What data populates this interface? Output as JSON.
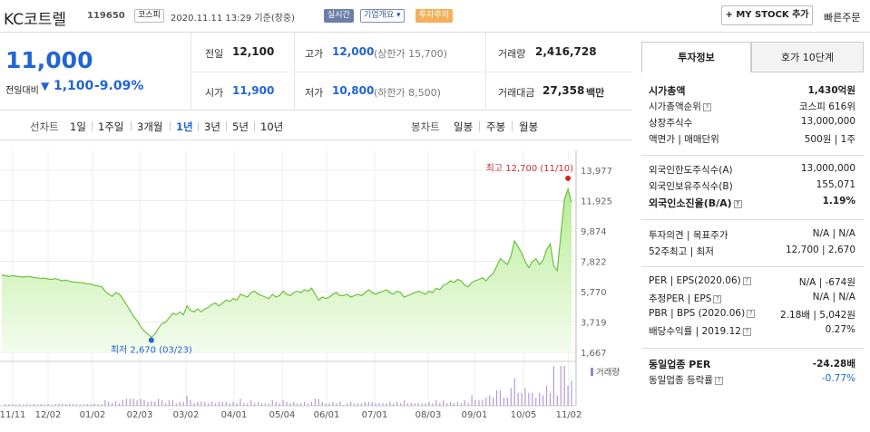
{
  "header": {
    "name": "KC코트렐",
    "code": "119650",
    "market_badge": "코스피",
    "timestamp": "2020.11.11 13:29 기준(장중)",
    "realtime_badge": "실시간",
    "company_dropdown": "기업개요",
    "warning_badge": "투자주의",
    "my_stock_button": "MY STOCK 추가",
    "quick_order": "빠른주문"
  },
  "quote": {
    "price": "11,000",
    "change_label": "전일대비",
    "change_value": "1,100",
    "change_pct": "-9.09%",
    "prev_close_label": "전일",
    "prev_close": "12,100",
    "high_label": "고가",
    "high": "12,000",
    "upper_limit": "(상한가 15,700)",
    "volume_label": "거래량",
    "volume": "2,416,728",
    "open_label": "시가",
    "open": "11,900",
    "low_label": "저가",
    "low": "10,800",
    "lower_limit": "(하한가 8,500)",
    "amount_label": "거래대금",
    "amount": "27,358",
    "amount_unit": "백만"
  },
  "chart_tabs": {
    "line_label": "선차트",
    "line_periods": [
      "1일",
      "1주일",
      "3개월",
      "1년",
      "3년",
      "5년",
      "10년"
    ],
    "active_period": "1년",
    "candle_label": "봉차트",
    "candle_periods": [
      "일봉",
      "주봉",
      "월봉"
    ]
  },
  "chart_data": {
    "type": "area",
    "y_ticks": [
      "13,977",
      "11,925",
      "9,874",
      "7,822",
      "5,770",
      "3,719",
      "1,667"
    ],
    "ylim": [
      1667,
      13977
    ],
    "x_ticks": [
      "11/11",
      "12/02",
      "01/02",
      "02/03",
      "03/02",
      "04/01",
      "05/04",
      "06/01",
      "07/01",
      "08/03",
      "09/01",
      "10/05",
      "11/02"
    ],
    "high_annotation": "최고 12,700 (11/10)",
    "low_annotation": "최저 2,670 (03/23)",
    "volume_label": "거래량",
    "prices": [
      6900,
      6850,
      6800,
      6850,
      6820,
      6780,
      6750,
      6800,
      6780,
      6720,
      6700,
      6650,
      6680,
      6620,
      6600,
      6650,
      6580,
      6500,
      6550,
      6480,
      6420,
      6400,
      6380,
      6350,
      6300,
      6280,
      6200,
      6150,
      6100,
      5800,
      5600,
      5450,
      5700,
      5600,
      5300,
      4900,
      4500,
      4100,
      3800,
      3400,
      3100,
      2900,
      2670,
      2900,
      3300,
      3600,
      3700,
      4000,
      4300,
      4200,
      4400,
      4200,
      4800,
      4500,
      4400,
      4600,
      4400,
      4600,
      4700,
      4900,
      5000,
      4800,
      5000,
      5200,
      5100,
      5300,
      5200,
      5600,
      5500,
      5400,
      5700,
      5800,
      5600,
      5500,
      5400,
      5300,
      5600,
      5400,
      5500,
      5800,
      5600,
      5500,
      5700,
      5800,
      5700,
      5900,
      5800,
      6000,
      5600,
      5200,
      5400,
      5300,
      5400,
      5600,
      5700,
      5500,
      5500,
      5600,
      5400,
      5500,
      5600,
      5500,
      5700,
      5900,
      5700,
      5600,
      5700,
      5800,
      5900,
      5700,
      5600,
      5800,
      5700,
      5400,
      5500,
      5600,
      5700,
      5800,
      5700,
      5600,
      5800,
      5700,
      6000,
      5900,
      6200,
      6300,
      6500,
      6400,
      6600,
      6500,
      6200,
      6100,
      6400,
      6500,
      6600,
      6700,
      6500,
      6800,
      7000,
      7500,
      8000,
      7800,
      7600,
      8200,
      9200,
      8800,
      8400,
      7800,
      7400,
      7800,
      8000,
      7600,
      7900,
      8600,
      9000,
      7500,
      7200,
      9600,
      12000,
      12700,
      11800
    ]
  },
  "right_panel": {
    "tab_active": "투자정보",
    "tab_other": "호가 10단계",
    "rows1": [
      {
        "l": "시가총액",
        "r": "1,430억원",
        "b": true
      },
      {
        "l": "시가총액순위",
        "r": "코스피 616위",
        "b": false
      },
      {
        "l": "상장주식수",
        "r": "13,000,000",
        "b": false
      },
      {
        "l": "액면가 | 매매단위",
        "r": "500원 | 1주",
        "b": false
      }
    ],
    "rows2": [
      {
        "l": "외국인한도주식수(A)",
        "r": "13,000,000",
        "b": false
      },
      {
        "l": "외국인보유주식수(B)",
        "r": "155,071",
        "b": false
      },
      {
        "l": "외국인소진율(B/A)",
        "r": "1.19%",
        "b": true
      }
    ],
    "rows3": [
      {
        "l": "투자의견 | 목표주가",
        "r": "N/A | N/A",
        "b": false
      },
      {
        "l": "52주최고 | 최저",
        "r": "12,700 | 2,670",
        "b": false
      }
    ],
    "rows4": [
      {
        "l": "PER | EPS(2020.06)",
        "r": "N/A | -674원",
        "b": false
      },
      {
        "l": "추정PER | EPS",
        "r": "N/A | N/A",
        "b": false
      },
      {
        "l": "PBR | BPS (2020.06)",
        "r": "2.18배 | 5,042원",
        "b": false
      },
      {
        "l": "배당수익률 | 2019.12",
        "r": "0.27%",
        "b": false
      }
    ],
    "rows5": [
      {
        "l": "동일업종 PER",
        "r": "-24.28배",
        "b": true
      },
      {
        "l": "동일업종 등락률",
        "r": "-0.77%",
        "b": false
      }
    ]
  }
}
